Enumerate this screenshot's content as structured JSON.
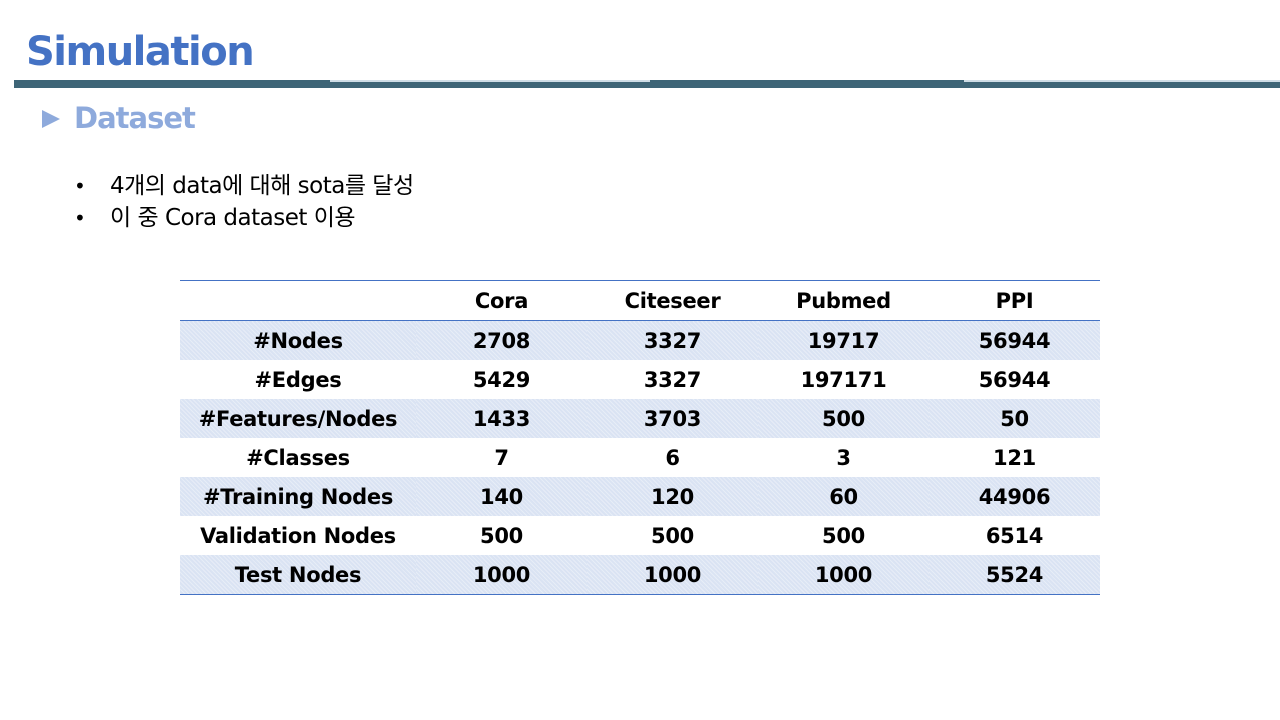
{
  "slide": {
    "title": "Simulation",
    "subtitle": "Dataset",
    "bullets": [
      "4개의 data에 대해 sota를 달성",
      "이 중 Cora dataset 이용"
    ],
    "colors": {
      "title": "#4472c4",
      "subtitle": "#8eaadc",
      "rule": "#3e6577",
      "row_shade": "#dae3f3",
      "table_border": "#4472c4"
    }
  },
  "table": {
    "headers": [
      "",
      "Cora",
      "Citeseer",
      "Pubmed",
      "PPI"
    ],
    "rows": [
      [
        "#Nodes",
        "2708",
        "3327",
        "19717",
        "56944"
      ],
      [
        "#Edges",
        "5429",
        "3327",
        "197171",
        "56944"
      ],
      [
        "#Features/Nodes",
        "1433",
        "3703",
        "500",
        "50"
      ],
      [
        "#Classes",
        "7",
        "6",
        "3",
        "121"
      ],
      [
        "#Training Nodes",
        "140",
        "120",
        "60",
        "44906"
      ],
      [
        "Validation Nodes",
        "500",
        "500",
        "500",
        "6514"
      ],
      [
        "Test Nodes",
        "1000",
        "1000",
        "1000",
        "5524"
      ]
    ]
  }
}
